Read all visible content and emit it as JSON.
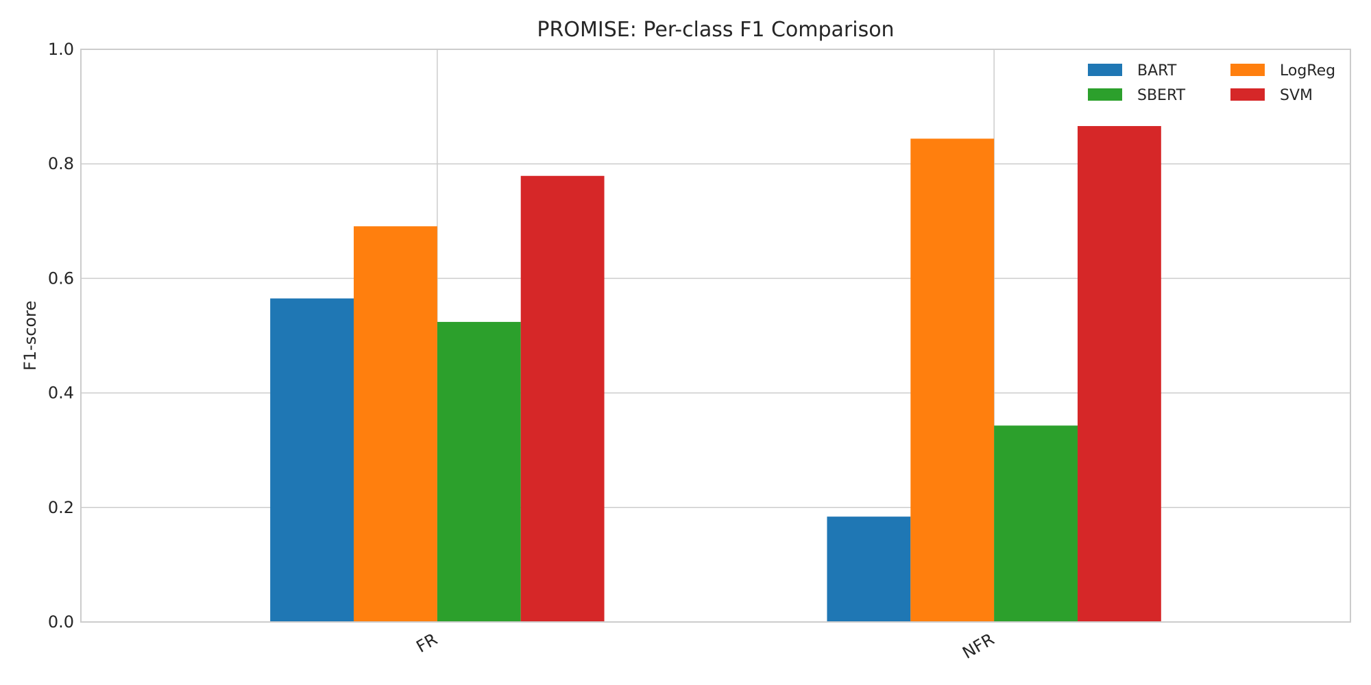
{
  "chart_data": {
    "type": "bar",
    "title": "PROMISE: Per-class F1 Comparison",
    "xlabel": "",
    "ylabel": "F1-score",
    "ylim": [
      0,
      1.0
    ],
    "yticks": [
      "0.0",
      "0.2",
      "0.4",
      "0.6",
      "0.8",
      "1.0"
    ],
    "categories": [
      "FR",
      "NFR"
    ],
    "series": [
      {
        "name": "BART",
        "color": "#1f77b4",
        "values": [
          0.565,
          0.184
        ]
      },
      {
        "name": "LogReg",
        "color": "#ff7f0e",
        "values": [
          0.691,
          0.844
        ]
      },
      {
        "name": "SBERT",
        "color": "#2ca02c",
        "values": [
          0.524,
          0.343
        ]
      },
      {
        "name": "SVM",
        "color": "#d62728",
        "values": [
          0.779,
          0.866
        ]
      }
    ],
    "grid": true,
    "legend_position": "top-right",
    "legend_columns": 2
  }
}
